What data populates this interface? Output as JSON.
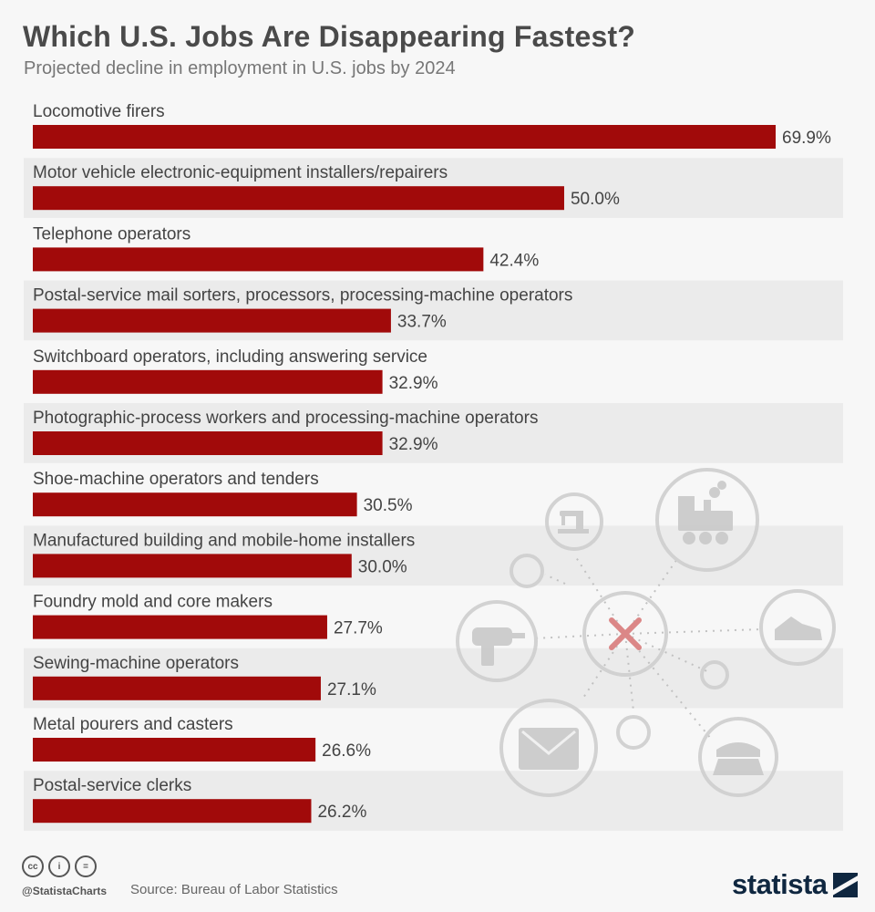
{
  "header": {
    "title": "Which U.S. Jobs Are Disappearing Fastest?",
    "subtitle": "Projected decline in employment in U.S. jobs by 2024"
  },
  "chart_data": {
    "type": "bar",
    "orientation": "horizontal",
    "title": "Which U.S. Jobs Are Disappearing Fastest?",
    "subtitle": "Projected decline in employment in U.S. jobs by 2024",
    "unit": "%",
    "xlim": [
      0,
      70
    ],
    "bar_color": "#a10a0a",
    "categories": [
      "Locomotive firers",
      "Motor vehicle electronic-equipment installers/repairers",
      "Telephone operators",
      "Postal-service mail sorters, processors, processing-machine operators",
      "Switchboard operators, including answering service",
      "Photographic-process workers and processing-machine operators",
      "Shoe-machine operators and tenders",
      "Manufactured building and mobile-home installers",
      "Foundry mold and core makers",
      "Sewing-machine operators",
      "Metal pourers and casters",
      "Postal-service clerks"
    ],
    "values": [
      69.9,
      50.0,
      42.4,
      33.7,
      32.9,
      32.9,
      30.5,
      30.0,
      27.7,
      27.1,
      26.6,
      26.2
    ],
    "value_labels": [
      "69.9%",
      "50.0%",
      "42.4%",
      "33.7%",
      "32.9%",
      "32.9%",
      "30.5%",
      "30.0%",
      "27.7%",
      "27.1%",
      "26.6%",
      "26.2%"
    ]
  },
  "decoration": {
    "icons": [
      "sewing-machine-icon",
      "locomotive-icon",
      "power-drill-icon",
      "x-mark-icon",
      "shoe-icon",
      "envelope-icon",
      "telephone-icon"
    ],
    "x_color": "#d97b7b"
  },
  "footer": {
    "license_icons": [
      "cc",
      "i",
      "="
    ],
    "handle": "@StatistaCharts",
    "source": "Source: Bureau of Labor Statistics",
    "logo": "statista",
    "brand_color": "#0f2740"
  }
}
